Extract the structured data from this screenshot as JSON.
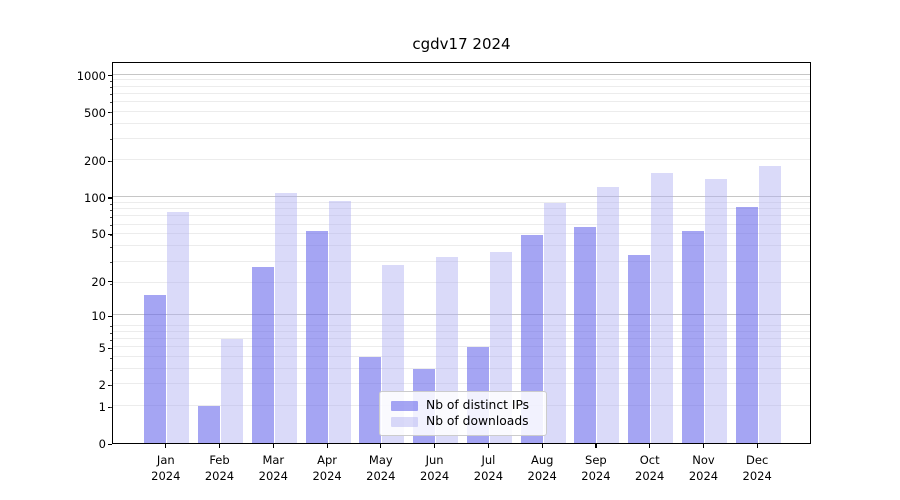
{
  "title": "cgdv17 2024",
  "legend": {
    "items": [
      {
        "label": "Nb of distinct IPs",
        "color": "rgba(105,105,235,0.60)"
      },
      {
        "label": "Nb of downloads",
        "color": "rgba(173,173,242,0.45)"
      }
    ]
  },
  "axes": {
    "y_tick_labels": [
      "0",
      "1",
      "2",
      "5",
      "10",
      "20",
      "50",
      "100",
      "200",
      "500",
      "1000"
    ],
    "y_tick_values": [
      0,
      1,
      2,
      5,
      10,
      20,
      50,
      100,
      200,
      500,
      1000
    ],
    "x_tick_lines": {
      "year": "2024",
      "months": [
        "Jan",
        "Feb",
        "Mar",
        "Apr",
        "May",
        "Jun",
        "Jul",
        "Aug",
        "Sep",
        "Oct",
        "Nov",
        "Dec"
      ]
    }
  },
  "chart_data": {
    "type": "bar",
    "title": "cgdv17 2024",
    "categories": [
      "Jan 2024",
      "Feb 2024",
      "Mar 2024",
      "Apr 2024",
      "May 2024",
      "Jun 2024",
      "Jul 2024",
      "Aug 2024",
      "Sep 2024",
      "Oct 2024",
      "Nov 2024",
      "Dec 2024"
    ],
    "series": [
      {
        "name": "Nb of distinct IPs",
        "color": "rgba(105,105,235,0.60)",
        "values": [
          15,
          1,
          26,
          52,
          4,
          3,
          5,
          48,
          56,
          33,
          52,
          83
        ]
      },
      {
        "name": "Nb of downloads",
        "color": "rgba(173,173,242,0.45)",
        "values": [
          75,
          6,
          107,
          93,
          27,
          32,
          35,
          89,
          121,
          157,
          141,
          180
        ]
      }
    ],
    "xlabel": "",
    "ylabel": "",
    "yscale": "log10(value+1)",
    "ylim": [
      0,
      1280
    ],
    "y_ticks": [
      0,
      1,
      2,
      5,
      10,
      20,
      50,
      100,
      200,
      500,
      1000
    ],
    "grid": true,
    "gridlines": {
      "major_values": [
        10,
        100,
        1000
      ],
      "minor_values": [
        1,
        2,
        3,
        4,
        5,
        6,
        7,
        8,
        19,
        29,
        39,
        49,
        59,
        69,
        79,
        89,
        199,
        299,
        399,
        499,
        599,
        699,
        799,
        899
      ]
    },
    "legend_position": "lower center"
  }
}
